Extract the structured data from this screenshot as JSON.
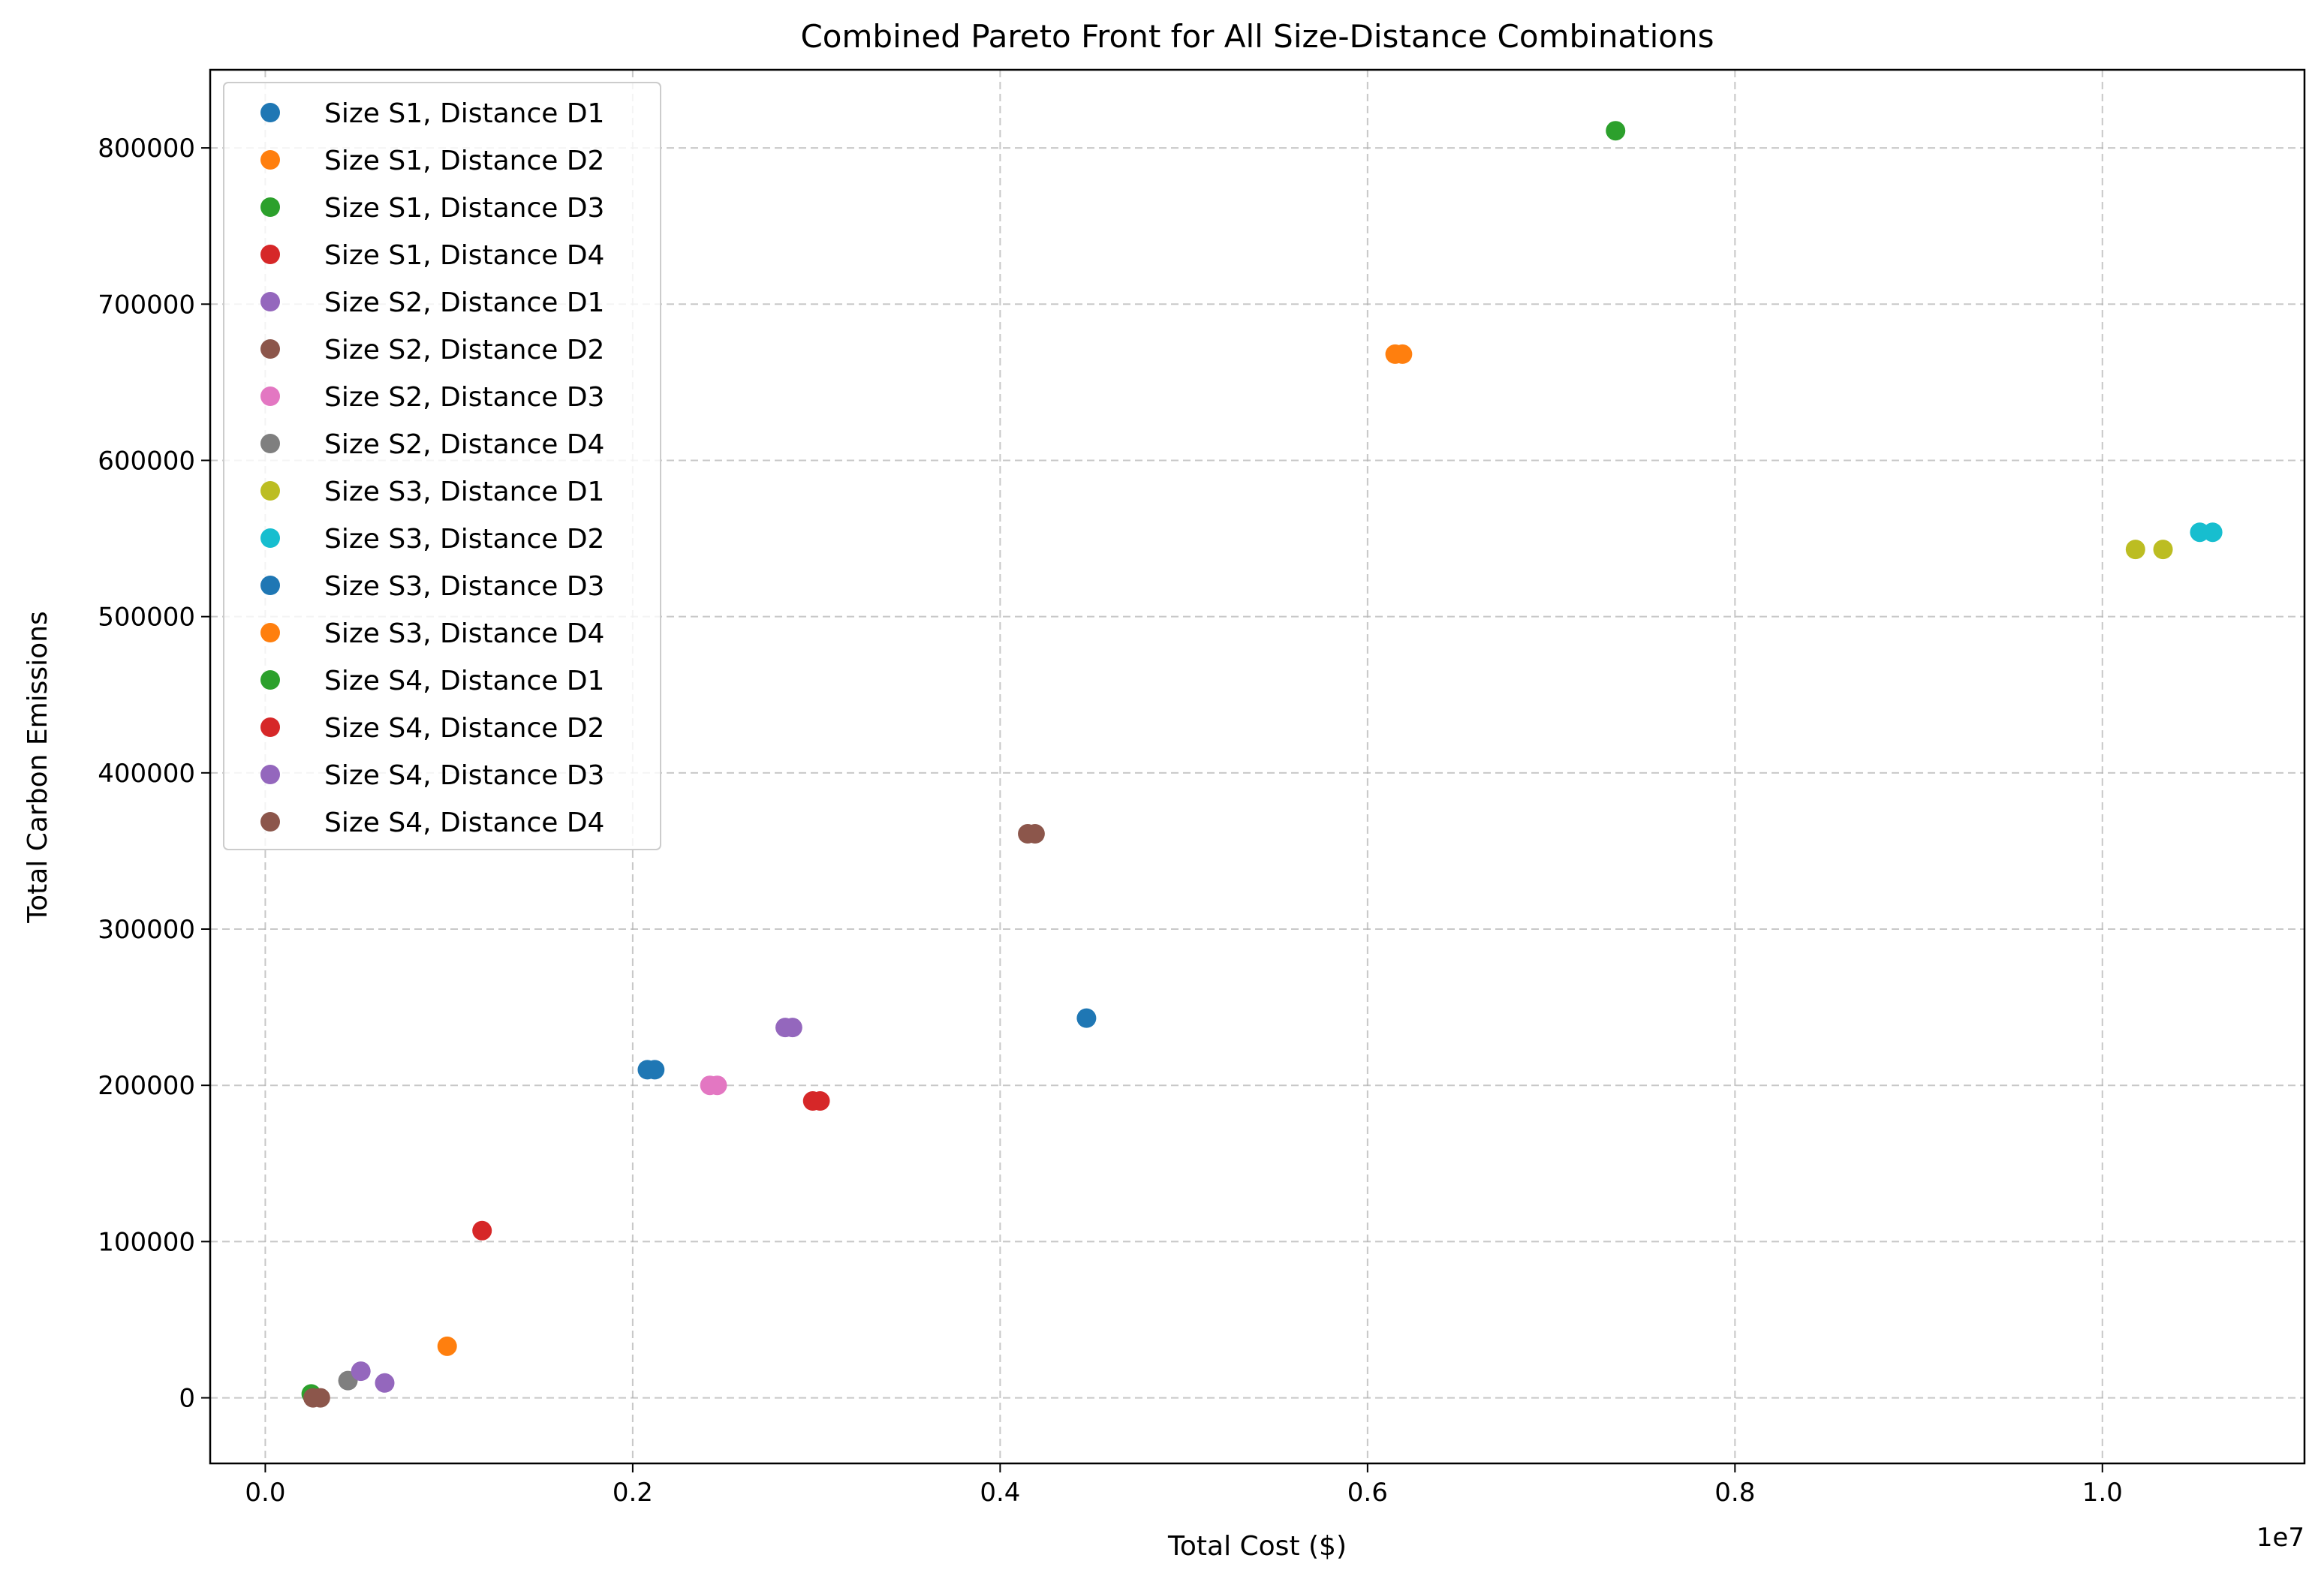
{
  "chart_data": {
    "type": "scatter",
    "title": "Combined Pareto Front for All Size-Distance Combinations",
    "xlabel": "Total Cost ($)",
    "ylabel": "Total Carbon Emissions",
    "x_offset_label": "1e7",
    "x_scale": 10000000,
    "xlim": [
      -300000,
      11100000
    ],
    "ylim": [
      -42000,
      850000
    ],
    "x_ticks": [
      0,
      2000000,
      4000000,
      6000000,
      8000000,
      10000000
    ],
    "x_tick_labels": [
      "0.0",
      "0.2",
      "0.4",
      "0.6",
      "0.8",
      "1.0"
    ],
    "y_ticks": [
      0,
      100000,
      200000,
      300000,
      400000,
      500000,
      600000,
      700000,
      800000
    ],
    "y_tick_labels": [
      "0",
      "100000",
      "200000",
      "300000",
      "400000",
      "500000",
      "600000",
      "700000",
      "800000"
    ],
    "grid": true,
    "legend_position": "upper-left",
    "series": [
      {
        "name": "Size S1, Distance D1",
        "color": "#1f77b4",
        "points": [
          [
            2080000,
            210000
          ],
          [
            2120000,
            210000
          ]
        ]
      },
      {
        "name": "Size S1, Distance D2",
        "color": "#ff7f0e",
        "points": [
          [
            6150000,
            668000
          ],
          [
            6190000,
            668000
          ]
        ]
      },
      {
        "name": "Size S1, Distance D3",
        "color": "#2ca02c",
        "points": [
          [
            7350000,
            811000
          ]
        ]
      },
      {
        "name": "Size S1, Distance D4",
        "color": "#d62728",
        "points": [
          [
            2980000,
            190000
          ],
          [
            3020000,
            190000
          ]
        ]
      },
      {
        "name": "Size S2, Distance D1",
        "color": "#9467bd",
        "points": [
          [
            2830000,
            237000
          ],
          [
            2870000,
            237000
          ]
        ]
      },
      {
        "name": "Size S2, Distance D2",
        "color": "#8c564b",
        "points": [
          [
            4150000,
            361000
          ],
          [
            4190000,
            361000
          ]
        ]
      },
      {
        "name": "Size S2, Distance D3",
        "color": "#e377c2",
        "points": [
          [
            2420000,
            200000
          ],
          [
            2460000,
            200000
          ]
        ]
      },
      {
        "name": "Size S2, Distance D4",
        "color": "#7f7f7f",
        "points": [
          [
            450000,
            11000
          ]
        ]
      },
      {
        "name": "Size S3, Distance D1",
        "color": "#bcbd22",
        "points": [
          [
            10180000,
            543000
          ],
          [
            10330000,
            543000
          ]
        ]
      },
      {
        "name": "Size S3, Distance D2",
        "color": "#17becf",
        "points": [
          [
            10530000,
            554000
          ],
          [
            10600000,
            554000
          ]
        ]
      },
      {
        "name": "Size S3, Distance D3",
        "color": "#1f77b4",
        "points": [
          [
            4470000,
            243000
          ]
        ]
      },
      {
        "name": "Size S3, Distance D4",
        "color": "#ff7f0e",
        "points": [
          [
            990000,
            33000
          ]
        ]
      },
      {
        "name": "Size S4, Distance D1",
        "color": "#2ca02c",
        "points": [
          [
            250000,
            2500
          ]
        ]
      },
      {
        "name": "Size S4, Distance D2",
        "color": "#d62728",
        "points": [
          [
            1180000,
            107000
          ]
        ]
      },
      {
        "name": "Size S4, Distance D3",
        "color": "#9467bd",
        "points": [
          [
            520000,
            17000
          ],
          [
            650000,
            9500
          ]
        ]
      },
      {
        "name": "Size S4, Distance D4",
        "color": "#8c564b",
        "points": [
          [
            260000,
            0
          ],
          [
            300000,
            0
          ]
        ]
      }
    ]
  }
}
